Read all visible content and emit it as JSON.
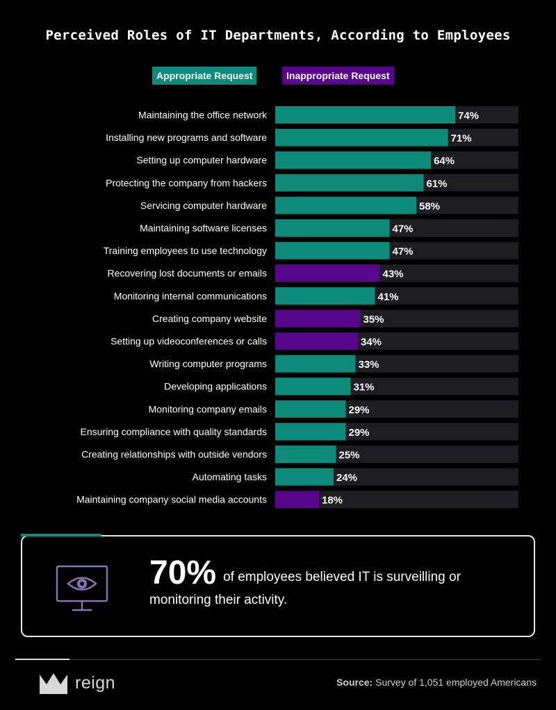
{
  "colors": {
    "appropriate": "#0e8a7b",
    "inappropriate": "#57068c",
    "track": "#1e1e22",
    "background": "#000000"
  },
  "chart_data": {
    "type": "bar",
    "orientation": "horizontal",
    "title": "Perceived Roles of IT Departments, According to Employees",
    "legend": [
      {
        "name": "Appropriate Request",
        "color": "#0e8a7b"
      },
      {
        "name": "Inappropriate Request",
        "color": "#57068c"
      }
    ],
    "legend_position": "top",
    "xlim": [
      0,
      100
    ],
    "unit": "%",
    "categories": [
      "Maintaining the office network",
      "Installing new programs and software",
      "Setting up computer hardware",
      "Protecting the company from hackers",
      "Servicing computer hardware",
      "Maintaining software licenses",
      "Training employees to use technology",
      "Recovering lost documents or emails",
      "Monitoring internal communications",
      "Creating company website",
      "Setting up videoconferences or calls",
      "Writing computer programs",
      "Developing applications",
      "Monitoring company emails",
      "Ensuring compliance with quality standards",
      "Creating relationships with outside vendors",
      "Automating tasks",
      "Maintaining company social media accounts"
    ],
    "values": [
      74,
      71,
      64,
      61,
      58,
      47,
      47,
      43,
      41,
      35,
      34,
      33,
      31,
      29,
      29,
      25,
      24,
      18
    ],
    "classification": [
      "Appropriate Request",
      "Appropriate Request",
      "Appropriate Request",
      "Appropriate Request",
      "Appropriate Request",
      "Appropriate Request",
      "Appropriate Request",
      "Inappropriate Request",
      "Appropriate Request",
      "Inappropriate Request",
      "Inappropriate Request",
      "Appropriate Request",
      "Appropriate Request",
      "Appropriate Request",
      "Appropriate Request",
      "Appropriate Request",
      "Appropriate Request",
      "Inappropriate Request"
    ]
  },
  "callout": {
    "stat": "70%",
    "text": "of employees believed IT is surveilling or monitoring their activity.",
    "icon": "monitor-eye-icon"
  },
  "footer": {
    "brand": "reign",
    "source_label": "Source:",
    "source_text": "Survey of 1,051 employed Americans"
  }
}
